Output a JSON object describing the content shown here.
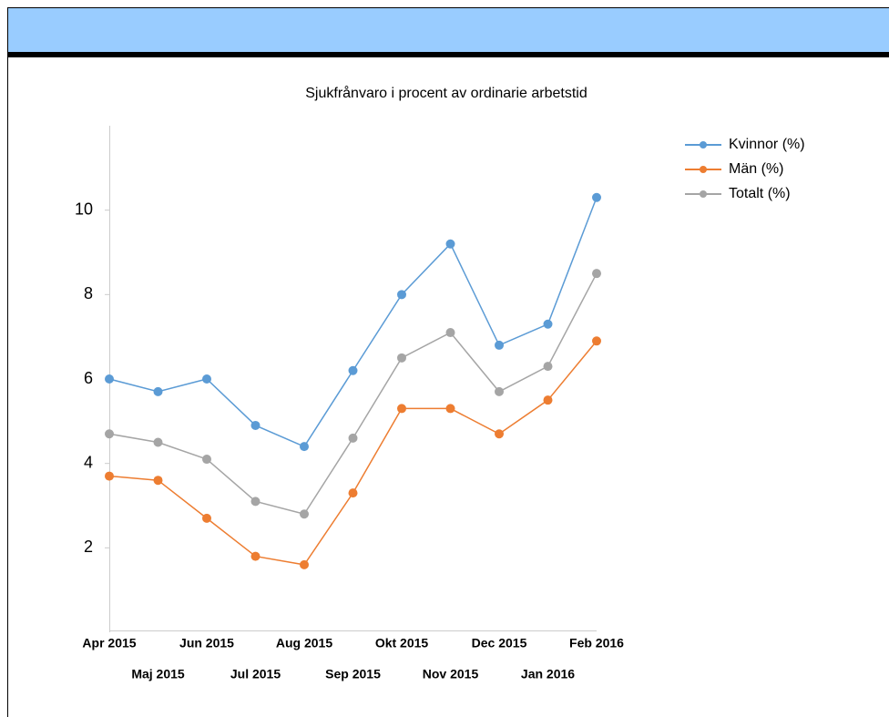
{
  "chart_data": {
    "type": "line",
    "title": "Sjukfrånvaro i procent av ordinarie arbetstid",
    "categories": [
      "Apr 2015",
      "Maj 2015",
      "Jun 2015",
      "Jul 2015",
      "Aug 2015",
      "Sep 2015",
      "Okt 2015",
      "Nov 2015",
      "Dec 2015",
      "Jan 2016",
      "Feb 2016"
    ],
    "series": [
      {
        "name": "Kvinnor (%)",
        "color": "#5b9bd5",
        "values": [
          6.0,
          5.7,
          6.0,
          4.9,
          4.4,
          6.2,
          8.0,
          9.2,
          6.8,
          7.3,
          10.3
        ]
      },
      {
        "name": "Män (%)",
        "color": "#ed7d31",
        "values": [
          3.7,
          3.6,
          2.7,
          1.8,
          1.6,
          3.3,
          5.3,
          5.3,
          4.7,
          5.5,
          6.9
        ]
      },
      {
        "name": "Totalt (%)",
        "color": "#a5a5a5",
        "values": [
          4.7,
          4.5,
          4.1,
          3.1,
          2.8,
          4.6,
          6.5,
          7.1,
          5.7,
          6.3,
          8.5
        ]
      }
    ],
    "ylim": [
      0,
      12
    ],
    "yticks": [
      2,
      4,
      6,
      8,
      10
    ],
    "grid": false,
    "legend": "top-right"
  }
}
